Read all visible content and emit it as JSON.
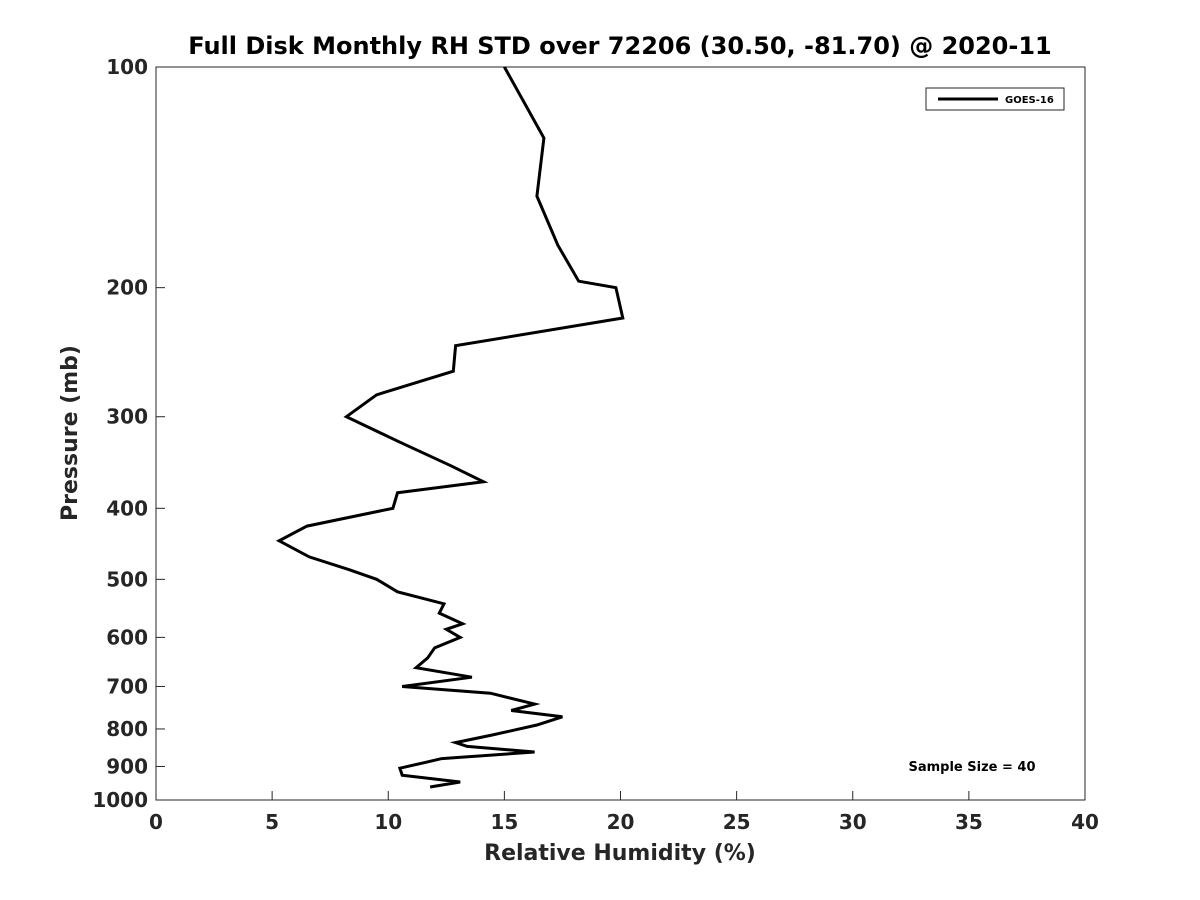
{
  "chart_data": {
    "type": "line",
    "title": "Full Disk Monthly RH STD over 72206 (30.50, -81.70) @ 2020-11",
    "xlabel": "Relative Humidity (%)",
    "ylabel": "Pressure (mb)",
    "xlim": [
      0,
      40
    ],
    "ylim": [
      100,
      1000
    ],
    "y_scale": "log",
    "y_reversed": true,
    "x_ticks": [
      "0",
      "5",
      "10",
      "15",
      "20",
      "25",
      "30",
      "35",
      "40"
    ],
    "y_ticks": [
      "100",
      "200",
      "300",
      "400",
      "500",
      "600",
      "700",
      "800",
      "900",
      "1000"
    ],
    "grid": false,
    "legend_position": "top-right",
    "annotation": "Sample Size = 40",
    "series": [
      {
        "name": "GOES-16",
        "color": "#000000",
        "points": [
          [
            15.0,
            100
          ],
          [
            16.7,
            125
          ],
          [
            16.4,
            150
          ],
          [
            17.3,
            175
          ],
          [
            18.2,
            196
          ],
          [
            19.8,
            200
          ],
          [
            20.1,
            220
          ],
          [
            12.9,
            240
          ],
          [
            12.8,
            260
          ],
          [
            9.5,
            280
          ],
          [
            8.2,
            300
          ],
          [
            10.5,
            325
          ],
          [
            12.7,
            350
          ],
          [
            14.1,
            368
          ],
          [
            10.4,
            381
          ],
          [
            10.2,
            400
          ],
          [
            6.5,
            423
          ],
          [
            5.3,
            443
          ],
          [
            6.6,
            466
          ],
          [
            8.3,
            485
          ],
          [
            9.5,
            500
          ],
          [
            10.4,
            520
          ],
          [
            12.4,
            540
          ],
          [
            12.2,
            556
          ],
          [
            13.2,
            575
          ],
          [
            12.5,
            585
          ],
          [
            13.1,
            600
          ],
          [
            12.0,
            620
          ],
          [
            11.7,
            640
          ],
          [
            11.2,
            660
          ],
          [
            13.6,
            680
          ],
          [
            10.6,
            700
          ],
          [
            14.4,
            715
          ],
          [
            16.3,
            740
          ],
          [
            15.3,
            755
          ],
          [
            17.5,
            770
          ],
          [
            16.4,
            790
          ],
          [
            14.5,
            815
          ],
          [
            12.9,
            835
          ],
          [
            13.4,
            845
          ],
          [
            16.3,
            860
          ],
          [
            12.3,
            878
          ],
          [
            11.5,
            890
          ],
          [
            10.5,
            905
          ],
          [
            10.6,
            925
          ],
          [
            13.1,
            945
          ],
          [
            11.8,
            960
          ]
        ]
      }
    ]
  }
}
